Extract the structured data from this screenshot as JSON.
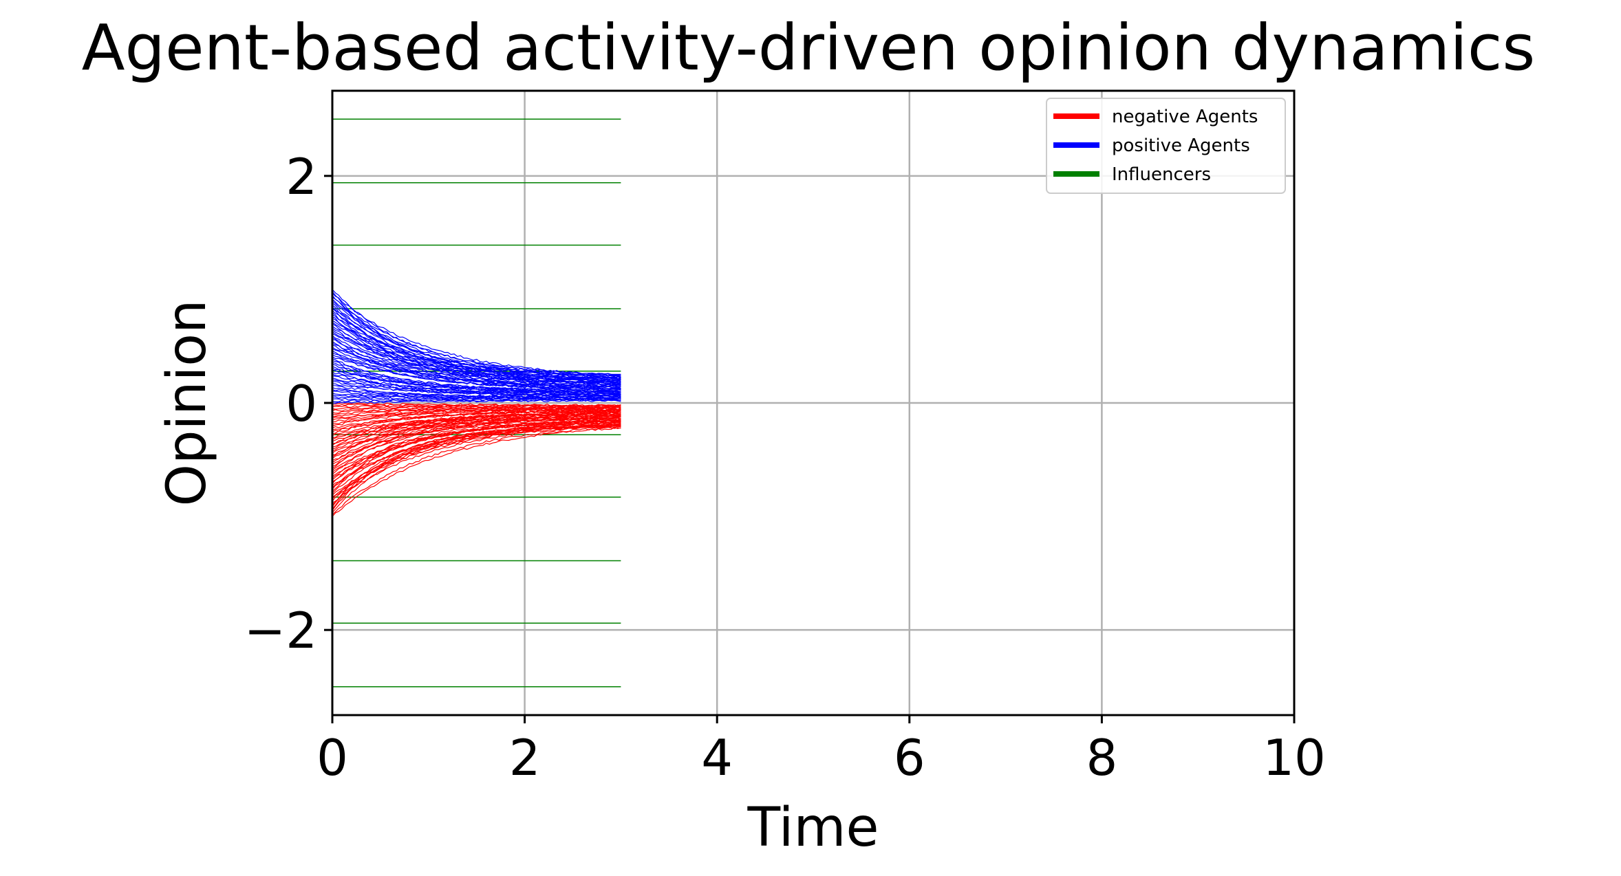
{
  "chart_data": {
    "type": "line",
    "title": "Agent-based activity-driven opinion dynamics",
    "xlabel": "Time",
    "ylabel": "Opinion",
    "xlim": [
      0,
      10
    ],
    "ylim": [
      -2.75,
      2.75
    ],
    "xticks": [
      0,
      2,
      4,
      6,
      8,
      10
    ],
    "xtick_labels": [
      "0",
      "2",
      "4",
      "6",
      "8",
      "10"
    ],
    "yticks": [
      -2,
      0,
      2
    ],
    "ytick_labels": [
      "−2",
      "0",
      "2"
    ],
    "grid": true,
    "legend": {
      "placement": "top-right",
      "entries": [
        {
          "label": "negative Agents",
          "color": "#ff0000"
        },
        {
          "label": "positive Agents",
          "color": "#0000ff"
        },
        {
          "label": "Influencers",
          "color": "#008000"
        }
      ]
    },
    "time_extent": [
      0,
      3
    ],
    "influencers": {
      "color": "#008000",
      "opinions": [
        2.5,
        1.94,
        1.39,
        0.83,
        0.28,
        -0.28,
        -0.83,
        -1.39,
        -1.94,
        -2.5
      ]
    },
    "positive_agents": {
      "color": "#0000ff",
      "count": 60,
      "initial_range": [
        0.0,
        1.0
      ],
      "final_range": [
        0.02,
        0.25
      ]
    },
    "negative_agents": {
      "color": "#ff0000",
      "count": 60,
      "initial_range": [
        -1.0,
        0.0
      ],
      "final_range": [
        -0.22,
        -0.02
      ]
    }
  }
}
